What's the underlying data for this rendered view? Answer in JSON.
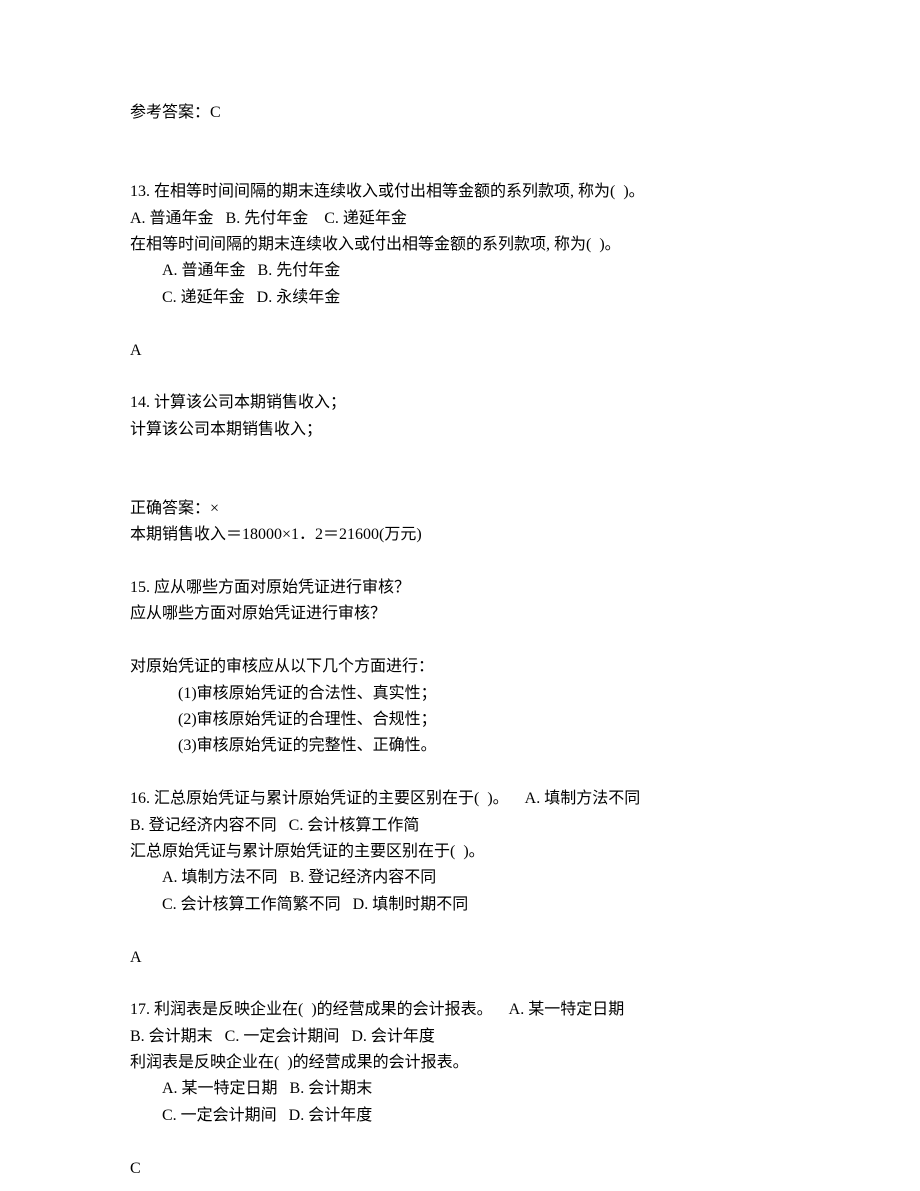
{
  "q12_ref_answer": "参考答案：C",
  "q13": {
    "num_stem": "13. 在相等时间间隔的期末连续收入或付出相等金额的系列款项, 称为(  )。",
    "opts_line1": "A. 普通年金   B. 先付年金    C. 递延年金",
    "repeat_stem": "在相等时间间隔的期末连续收入或付出相等金额的系列款项, 称为(  )。",
    "opts_ab": "A. 普通年金   B. 先付年金",
    "opts_cd": "C. 递延年金   D. 永续年金",
    "answer": "A"
  },
  "q14": {
    "num_stem": "14. 计算该公司本期销售收入；",
    "repeat_stem": "计算该公司本期销售收入；",
    "correct_label": "正确答案：×",
    "solution": "本期销售收入＝18000×1．2＝21600(万元)"
  },
  "q15": {
    "num_stem": "15. 应从哪些方面对原始凭证进行审核？",
    "repeat_stem": "应从哪些方面对原始凭证进行审核？",
    "ans_intro": "对原始凭证的审核应从以下几个方面进行：",
    "pt1": "(1)审核原始凭证的合法性、真实性；",
    "pt2": "(2)审核原始凭证的合理性、合规性；",
    "pt3": "(3)审核原始凭证的完整性、正确性。"
  },
  "q16": {
    "num_stem_1": "16. 汇总原始凭证与累计原始凭证的主要区别在于(  )。    A. 填制方法不同",
    "num_stem_2": "B. 登记经济内容不同   C. 会计核算工作简",
    "repeat_stem": "汇总原始凭证与累计原始凭证的主要区别在于(  )。",
    "opts_ab": "A. 填制方法不同   B. 登记经济内容不同",
    "opts_cd": "C. 会计核算工作简繁不同   D. 填制时期不同",
    "answer": "A"
  },
  "q17": {
    "num_stem_1": "17. 利润表是反映企业在(  )的经营成果的会计报表。    A. 某一特定日期",
    "num_stem_2": "B. 会计期末   C. 一定会计期间   D. 会计年度",
    "repeat_stem": "利润表是反映企业在(  )的经营成果的会计报表。",
    "opts_ab": "A. 某一特定日期   B. 会计期末",
    "opts_cd": "C. 一定会计期间   D. 会计年度",
    "answer": "C"
  }
}
